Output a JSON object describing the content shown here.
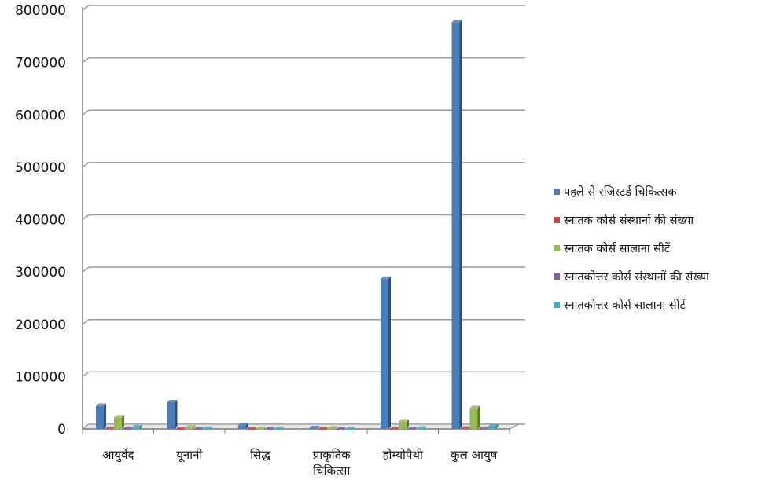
{
  "chart_data": {
    "type": "bar",
    "style": "3d-clustered-column",
    "categories": [
      "आयुर्वेद",
      "यूनानी",
      "सिद्ध",
      "प्राकृतिक चिकित्सा",
      "होम्योपैथी",
      "कुल आयुष"
    ],
    "series": [
      {
        "name": "पहले से रजिस्टर्ड चिकित्सक",
        "color": "#4a7ebb",
        "values": [
          44000,
          51000,
          7000,
          1500,
          287000,
          777000
        ]
      },
      {
        "name": "स्नातक कोर्स संस्थानों की संख्या",
        "color": "#be4b48",
        "values": [
          400,
          50,
          10,
          20,
          200,
          700
        ]
      },
      {
        "name": "स्नातक कोर्स सालाना सीटें",
        "color": "#98b954",
        "values": [
          22000,
          2500,
          400,
          1000,
          14000,
          40000
        ]
      },
      {
        "name": "स्नातकोत्तर कोर्स संस्थानों की संख्या",
        "color": "#7d60a0",
        "values": [
          100,
          10,
          5,
          5,
          40,
          150
        ]
      },
      {
        "name": "स्नातकोत्तर कोर्स सालाना सीटें",
        "color": "#46aac5",
        "values": [
          3000,
          300,
          100,
          50,
          800,
          4500
        ]
      }
    ],
    "yticks": [
      "0",
      "100000",
      "200000",
      "300000",
      "400000",
      "500000",
      "600000",
      "700000",
      "800000"
    ],
    "ylim": [
      0,
      800000
    ],
    "grid": true,
    "legend_position": "right"
  }
}
